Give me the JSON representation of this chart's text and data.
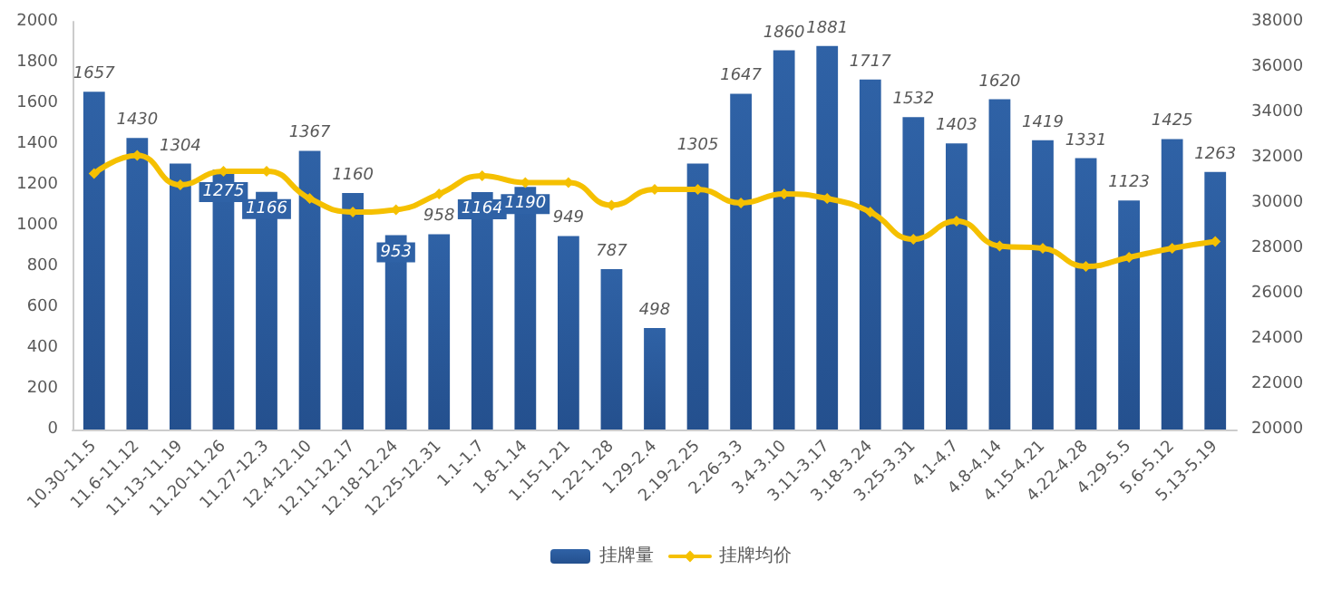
{
  "chart_data": {
    "type": "bar",
    "categories": [
      "10.30-11.5",
      "11.6-11.12",
      "11.13-11.19",
      "11.20-11.26",
      "11.27-12.3",
      "12.4-12.10",
      "12.11-12.17",
      "12.18-12.24",
      "12.25-12.31",
      "1.1-1.7",
      "1.8-1.14",
      "1.15-1.21",
      "1.22-1.28",
      "1.29-2.4",
      "2.19-2.25",
      "2.26-3.3",
      "3.4-3.10",
      "3.11-3.17",
      "3.18-3.24",
      "3.25-3.31",
      "4.1-4.7",
      "4.8-4.14",
      "4.15-4.21",
      "4.22-4.28",
      "4.29-5.5",
      "5.6-5.12",
      "5.13-5.19"
    ],
    "series": [
      {
        "name": "挂牌量",
        "type": "bar",
        "color": "#2f62a6",
        "data_labels": true,
        "values": [
          1657,
          1430,
          1304,
          1275,
          1166,
          1367,
          1160,
          953,
          958,
          1164,
          1190,
          949,
          787,
          498,
          1305,
          1647,
          1860,
          1881,
          1717,
          1532,
          1403,
          1620,
          1419,
          1331,
          1123,
          1425,
          1263
        ]
      },
      {
        "name": "挂牌均价",
        "type": "line",
        "axis": "y2",
        "color": "#f5c000",
        "marker": "diamond",
        "values": [
          31300,
          32100,
          30800,
          31400,
          31400,
          30200,
          29600,
          29700,
          30400,
          31200,
          30900,
          30900,
          29900,
          30600,
          30600,
          30000,
          30400,
          30200,
          29600,
          28400,
          29200,
          28100,
          28000,
          27200,
          27600,
          28000,
          28300
        ]
      }
    ],
    "ylim": [
      0,
      2000
    ],
    "yticks": [
      0,
      200,
      400,
      600,
      800,
      1000,
      1200,
      1400,
      1600,
      1800,
      2000
    ],
    "y2lim": [
      20000,
      38000
    ],
    "y2ticks": [
      20000,
      22000,
      24000,
      26000,
      28000,
      30000,
      32000,
      34000,
      36000,
      38000
    ],
    "grid": false,
    "legend": "bottom"
  }
}
